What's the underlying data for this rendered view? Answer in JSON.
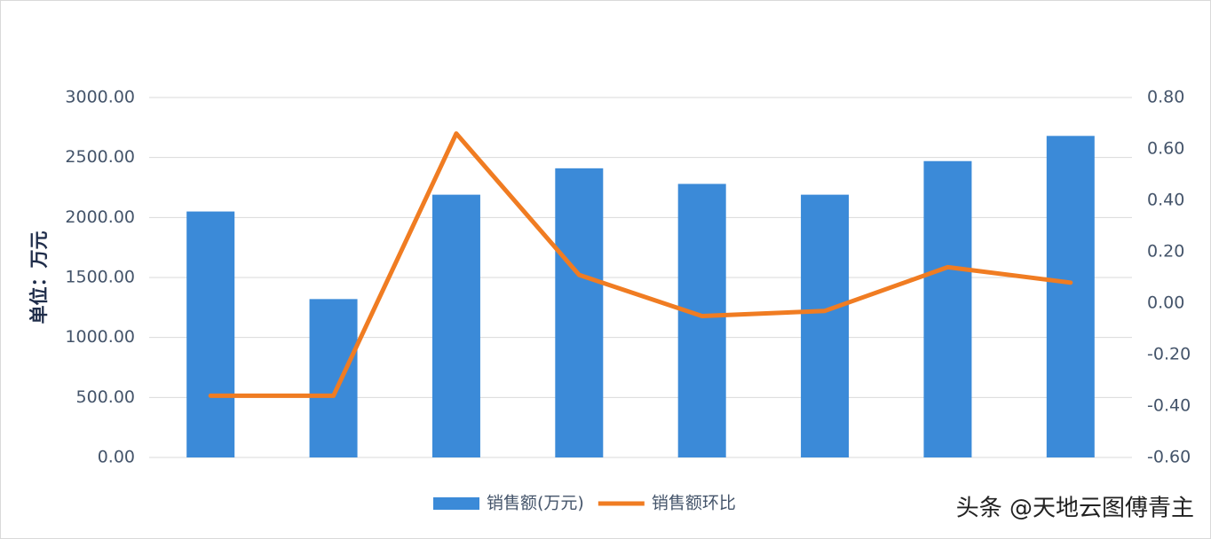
{
  "chart_data": {
    "type": "bar_line",
    "y_label": "单位：万元",
    "categories": [
      null,
      null,
      null,
      null,
      null,
      null,
      null,
      null
    ],
    "series": [
      {
        "name": "销售额(万元)",
        "type": "bar",
        "color": "#3b8ad8",
        "values": [
          2050,
          1320,
          2190,
          2410,
          2280,
          2190,
          2470,
          2680
        ]
      },
      {
        "name": "销售额环比",
        "type": "line",
        "color": "#f07c22",
        "axis": "y2",
        "values": [
          -0.36,
          -0.36,
          0.66,
          0.11,
          -0.05,
          -0.03,
          0.14,
          0.08
        ]
      }
    ],
    "ylim": [
      0,
      3000
    ],
    "yticks": [
      {
        "value": 0,
        "label": "0.00"
      },
      {
        "value": 500,
        "label": "500.00"
      },
      {
        "value": 1000,
        "label": "1000.00"
      },
      {
        "value": 1500,
        "label": "1500.00"
      },
      {
        "value": 2000,
        "label": "2000.00"
      },
      {
        "value": 2500,
        "label": "2500.00"
      },
      {
        "value": 3000,
        "label": "3000.00"
      }
    ],
    "y2lim": [
      -0.6,
      0.8
    ],
    "y2ticks": [
      {
        "value": -0.6,
        "label": "-0.60"
      },
      {
        "value": -0.4,
        "label": "-0.40"
      },
      {
        "value": -0.2,
        "label": "-0.20"
      },
      {
        "value": 0,
        "label": "0.00"
      },
      {
        "value": 0.2,
        "label": "0.20"
      },
      {
        "value": 0.4,
        "label": "0.40"
      },
      {
        "value": 0.6,
        "label": "0.60"
      },
      {
        "value": 0.8,
        "label": "0.80"
      }
    ],
    "grid": true,
    "legend": "bottom",
    "watermark": "头条 @天地云图傅青主"
  }
}
